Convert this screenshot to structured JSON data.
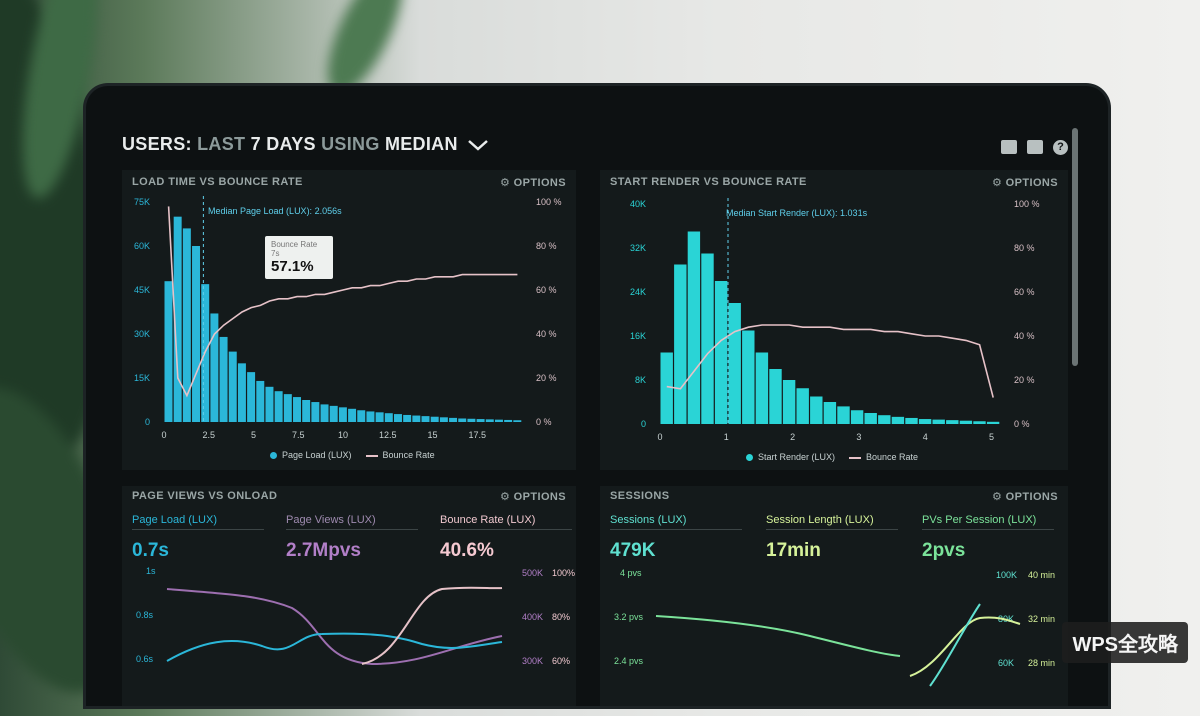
{
  "header": {
    "title_a": "USERS:",
    "title_b": "LAST",
    "title_c": "7 DAYS",
    "title_d": "USING",
    "title_e": "MEDIAN"
  },
  "panel1": {
    "title": "LOAD TIME VS BOUNCE RATE",
    "options": "⚙ OPTIONS",
    "median": "Median Page Load (LUX): 2.056s",
    "left_ticks": [
      "75K",
      "60K",
      "45K",
      "30K",
      "15K",
      "0"
    ],
    "right_ticks": [
      "100 %",
      "80 %",
      "60 %",
      "40 %",
      "20 %",
      "0 %"
    ],
    "x_ticks": [
      "0",
      "2.5",
      "5",
      "7.5",
      "10",
      "12.5",
      "15",
      "17.5"
    ],
    "legend_a": "Page Load (LUX)",
    "legend_b": "Bounce Rate",
    "tooltip_label": "Bounce Rate",
    "tooltip_sub": "7s",
    "tooltip_value": "57.1%"
  },
  "panel2": {
    "title": "START RENDER VS BOUNCE RATE",
    "options": "⚙ OPTIONS",
    "median": "Median Start Render (LUX): 1.031s",
    "left_ticks": [
      "40K",
      "32K",
      "24K",
      "16K",
      "8K",
      "0"
    ],
    "right_ticks": [
      "100 %",
      "80 %",
      "60 %",
      "40 %",
      "20 %",
      "0 %"
    ],
    "x_ticks": [
      "0",
      "1",
      "2",
      "3",
      "4",
      "5"
    ],
    "legend_a": "Start Render (LUX)",
    "legend_b": "Bounce Rate"
  },
  "panel3": {
    "title": "PAGE VIEWS VS ONLOAD",
    "options": "⚙ OPTIONS",
    "metrics": [
      {
        "label": "Page Load (LUX)",
        "value": "0.7s"
      },
      {
        "label": "Page Views (LUX)",
        "value": "2.7Mpvs"
      },
      {
        "label": "Bounce Rate (LUX)",
        "value": "40.6%"
      }
    ],
    "left_ticks": [
      "1s",
      "0.8s",
      "0.6s"
    ],
    "right_ticks_a": [
      "500K",
      "400K",
      "300K"
    ],
    "right_ticks_b": [
      "100%",
      "80%",
      "60%"
    ]
  },
  "panel4": {
    "title": "SESSIONS",
    "options": "⚙ OPTIONS",
    "metrics": [
      {
        "label": "Sessions (LUX)",
        "value": "479K"
      },
      {
        "label": "Session Length (LUX)",
        "value": "17min"
      },
      {
        "label": "PVs Per Session (LUX)",
        "value": "2pvs"
      }
    ],
    "left_ticks": [
      "4 pvs",
      "3.2 pvs",
      "2.4 pvs"
    ],
    "right_ticks_a": [
      "100K",
      "80K",
      "60K"
    ],
    "right_ticks_b": [
      "40 min",
      "32 min",
      "28 min"
    ]
  },
  "watermark": "WPS全攻略",
  "chart_data": [
    {
      "type": "bar",
      "title": "LOAD TIME VS BOUNCE RATE",
      "x_range": [
        0,
        20
      ],
      "ylim": [
        0,
        75000
      ],
      "series": [
        {
          "name": "Page Load (LUX)",
          "values": [
            48000,
            70000,
            66000,
            60000,
            47000,
            37000,
            29000,
            24000,
            20000,
            17000,
            14000,
            12000,
            10500,
            9500,
            8500,
            7500,
            6800,
            6000,
            5500,
            5000,
            4500,
            4000,
            3600,
            3300,
            3000,
            2700,
            2400,
            2200,
            2000,
            1800,
            1600,
            1400,
            1200,
            1100,
            1000,
            900,
            800,
            700,
            600
          ]
        },
        {
          "name": "Bounce Rate",
          "axis": "right",
          "values": [
            98,
            20,
            12,
            22,
            32,
            40,
            44,
            47,
            50,
            52,
            53,
            55,
            56,
            56,
            57,
            57,
            58,
            58,
            59,
            60,
            61,
            61,
            62,
            62,
            63,
            64,
            64,
            65,
            65,
            66,
            66,
            66,
            67,
            67,
            67,
            67,
            67,
            67,
            67
          ]
        }
      ]
    },
    {
      "type": "bar",
      "title": "START RENDER VS BOUNCE RATE",
      "x_range": [
        0,
        5.2
      ],
      "ylim": [
        0,
        40000
      ],
      "series": [
        {
          "name": "Start Render (LUX)",
          "values": [
            13000,
            29000,
            35000,
            31000,
            26000,
            22000,
            17000,
            13000,
            10000,
            8000,
            6500,
            5000,
            4000,
            3200,
            2500,
            2000,
            1600,
            1300,
            1100,
            900,
            800,
            700,
            600,
            500,
            400
          ]
        },
        {
          "name": "Bounce Rate",
          "axis": "right",
          "values": [
            17,
            16,
            24,
            32,
            38,
            42,
            44,
            45,
            45,
            45,
            44,
            44,
            44,
            43,
            43,
            43,
            42,
            42,
            41,
            40,
            40,
            39,
            38,
            36,
            12
          ]
        }
      ]
    }
  ]
}
